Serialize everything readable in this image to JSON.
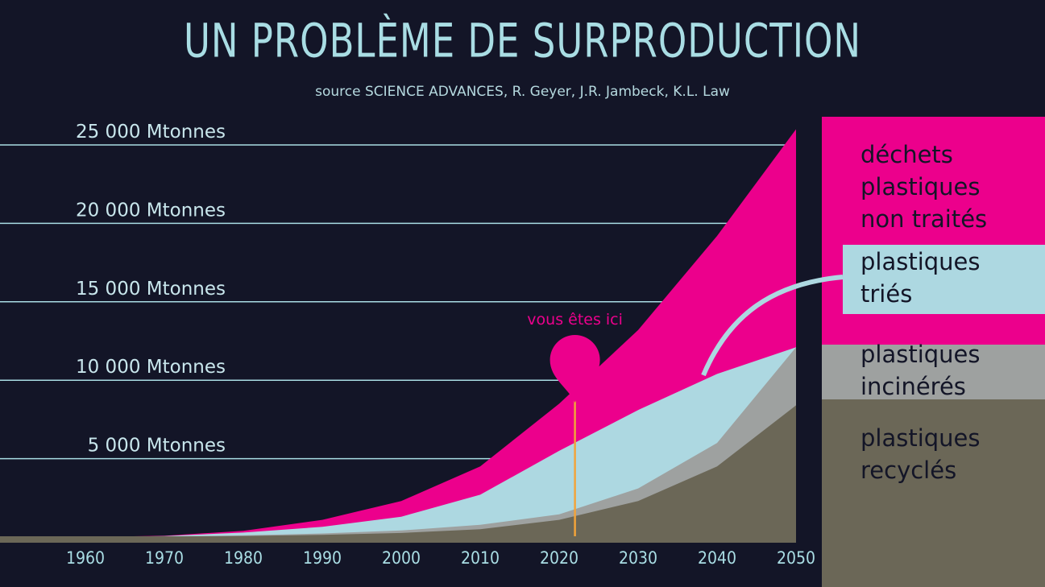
{
  "chart_data": {
    "type": "area",
    "title": "UN PROBLÈME DE SURPRODUCTION",
    "subtitle": "source SCIENCE ADVANCES, R. Geyer, J.R. Jambeck, K.L. Law",
    "x": [
      1950,
      1960,
      1970,
      1980,
      1990,
      2000,
      2010,
      2020,
      2030,
      2040,
      2050
    ],
    "xticks": [
      "1960",
      "1970",
      "1980",
      "1990",
      "2000",
      "2010",
      "2020",
      "2030",
      "2040",
      "2050"
    ],
    "ylim": [
      0,
      25000
    ],
    "yticks": [
      {
        "value": 5000,
        "label": "5 000 Mtonnes"
      },
      {
        "value": 10000,
        "label": "10 000 Mtonnes"
      },
      {
        "value": 15000,
        "label": "15 000 Mtonnes"
      },
      {
        "value": 20000,
        "label": "20 000 Mtonnes"
      },
      {
        "value": 25000,
        "label": "25 000 Mtonnes"
      }
    ],
    "series": [
      {
        "name": "plastiques recyclés",
        "color": "#6b6757",
        "values": [
          0,
          0,
          20,
          70,
          140,
          260,
          500,
          1100,
          2300,
          4500,
          8400
        ]
      },
      {
        "name": "plastiques incinérés",
        "color": "#9ea1a0",
        "values": [
          0,
          0,
          30,
          110,
          230,
          420,
          780,
          1450,
          3100,
          6000,
          12100
        ]
      },
      {
        "name": "plastiques triés",
        "color": "#add8e1",
        "values": [
          0,
          0,
          60,
          290,
          650,
          1300,
          2700,
          5500,
          8100,
          10400,
          12100
        ]
      },
      {
        "name": "déchets plastiques non traités",
        "color": "#ec008c",
        "values": [
          0,
          0,
          80,
          400,
          1100,
          2300,
          4500,
          8500,
          13200,
          19200,
          26000
        ]
      }
    ],
    "legend": [
      {
        "lines": [
          "déchets",
          "plastiques",
          "non traités"
        ],
        "color": "#ec008c"
      },
      {
        "lines": [
          "plastiques",
          "triés"
        ],
        "color": "#add8e1"
      },
      {
        "lines": [
          "plastiques",
          "incinérés"
        ],
        "color": "#9ea1a0"
      },
      {
        "lines": [
          "plastiques",
          "recyclés"
        ],
        "color": "#6b6757"
      }
    ],
    "annotation": {
      "text": "vous êtes ici",
      "x": 2022,
      "color": "#ec008c",
      "line_color": "#f2a33a"
    },
    "grid": true,
    "legend_position": "right"
  }
}
